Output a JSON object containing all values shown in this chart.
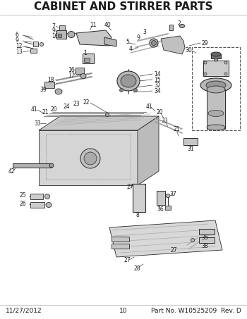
{
  "title": "CABINET AND STIRRER PARTS",
  "title_fontsize": 11,
  "footer_left": "11/27/2012",
  "footer_center": "10",
  "footer_right": "Part No. W10525209  Rev. D",
  "footer_fontsize": 6.5,
  "bg_color": "#ffffff",
  "line_color": "#2a2a2a",
  "text_color": "#1a1a1a",
  "fig_width": 3.5,
  "fig_height": 4.53,
  "dpi": 100
}
